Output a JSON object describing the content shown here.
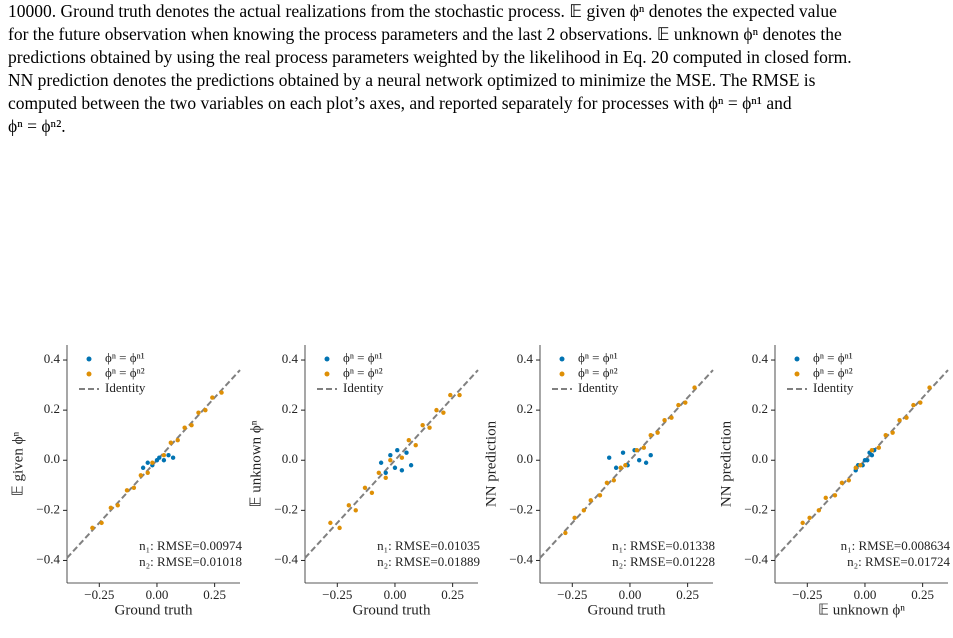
{
  "caption": {
    "lines": [
      "10000. Ground truth denotes the actual realizations from the stochastic process. 𝔼 given ϕⁿ denotes the expected value",
      "for the future observation when knowing the process parameters and the last 2 observations. 𝔼 unknown ϕⁿ denotes the",
      "predictions obtained by using the real process parameters weighted by the likelihood in Eq. 20 computed in closed form.",
      "NN prediction denotes the predictions obtained by a neural network optimized to minimize the MSE. The RMSE is",
      "computed between the two variables on each plot’s axes, and reported separately for processes with ϕⁿ = ϕⁿ¹ and",
      "ϕⁿ = ϕⁿ²."
    ]
  },
  "chart_data": [
    {
      "type": "scatter",
      "xlabel": "Ground truth",
      "ylabel": "𝔼 given ϕⁿ",
      "xlim": [
        -0.39,
        0.36
      ],
      "ylim": [
        -0.49,
        0.46
      ],
      "xticks": [
        {
          "value": -0.25,
          "label": "−0.25"
        },
        {
          "value": 0,
          "label": "0.00"
        },
        0.25
      ],
      "yticks": [
        {
          "value": -0.4,
          "label": "−0.4"
        },
        {
          "value": -0.2,
          "label": "−0.2"
        },
        {
          "value": 0,
          "label": "0.0"
        },
        0.2,
        0.4
      ],
      "legend": "upper left",
      "annotations": [
        "n₁: RMSE=0.00974",
        "n₂: RMSE=0.01018"
      ],
      "series": [
        {
          "name": "ϕⁿ = ϕⁿ¹",
          "color": "#0173b2",
          "x": [
            -0.06,
            -0.04,
            -0.02,
            0.0,
            0.01,
            0.03,
            0.05,
            0.07
          ],
          "values": [
            -0.03,
            -0.01,
            -0.02,
            0.0,
            0.01,
            0.0,
            0.02,
            0.01
          ]
        },
        {
          "name": "ϕⁿ = ϕⁿ²",
          "color": "#de8f05",
          "x": [
            -0.28,
            -0.24,
            -0.2,
            -0.17,
            -0.13,
            -0.1,
            -0.07,
            -0.04,
            -0.02,
            0.03,
            0.06,
            0.09,
            0.12,
            0.15,
            0.18,
            0.21,
            0.24,
            0.28
          ],
          "values": [
            -0.27,
            -0.25,
            -0.19,
            -0.18,
            -0.12,
            -0.11,
            -0.06,
            -0.05,
            -0.01,
            0.02,
            0.07,
            0.08,
            0.13,
            0.14,
            0.19,
            0.2,
            0.25,
            0.27
          ]
        },
        {
          "name": "Identity",
          "color": "#808080",
          "line": true,
          "x": [
            -0.39,
            0.36
          ],
          "values": [
            -0.39,
            0.36
          ]
        }
      ]
    },
    {
      "type": "scatter",
      "xlabel": "Ground truth",
      "ylabel": "𝔼 unknown ϕⁿ",
      "xlim": [
        -0.39,
        0.36
      ],
      "ylim": [
        -0.49,
        0.46
      ],
      "xticks": [
        {
          "value": -0.25,
          "label": "−0.25"
        },
        {
          "value": 0,
          "label": "0.00"
        },
        0.25
      ],
      "yticks": [
        {
          "value": -0.4,
          "label": "−0.4"
        },
        {
          "value": -0.2,
          "label": "−0.2"
        },
        {
          "value": 0,
          "label": "0.0"
        },
        0.2,
        0.4
      ],
      "legend": "upper left",
      "annotations": [
        "n₁: RMSE=0.01035",
        "n₂: RMSE=0.01889"
      ],
      "series": [
        {
          "name": "ϕⁿ = ϕⁿ¹",
          "color": "#0173b2",
          "x": [
            -0.06,
            -0.04,
            -0.02,
            0.0,
            0.01,
            0.03,
            0.05,
            0.07
          ],
          "values": [
            -0.01,
            -0.05,
            0.02,
            -0.03,
            0.04,
            -0.04,
            0.03,
            -0.02
          ]
        },
        {
          "name": "ϕⁿ = ϕⁿ²",
          "color": "#de8f05",
          "x": [
            -0.28,
            -0.24,
            -0.2,
            -0.17,
            -0.13,
            -0.1,
            -0.07,
            -0.04,
            -0.02,
            0.03,
            0.06,
            0.09,
            0.12,
            0.15,
            0.18,
            0.21,
            0.24,
            0.28
          ],
          "values": [
            -0.25,
            -0.27,
            -0.18,
            -0.2,
            -0.11,
            -0.13,
            -0.05,
            -0.07,
            0.0,
            0.01,
            0.08,
            0.06,
            0.14,
            0.13,
            0.2,
            0.19,
            0.26,
            0.26
          ]
        },
        {
          "name": "Identity",
          "color": "#808080",
          "line": true,
          "x": [
            -0.39,
            0.36
          ],
          "values": [
            -0.39,
            0.36
          ]
        }
      ]
    },
    {
      "type": "scatter",
      "xlabel": "Ground truth",
      "ylabel": "NN prediction",
      "xlim": [
        -0.39,
        0.36
      ],
      "ylim": [
        -0.49,
        0.46
      ],
      "xticks": [
        {
          "value": -0.25,
          "label": "−0.25"
        },
        {
          "value": 0,
          "label": "0.00"
        },
        0.25
      ],
      "yticks": [
        {
          "value": -0.4,
          "label": "−0.4"
        },
        {
          "value": -0.2,
          "label": "−0.2"
        },
        {
          "value": 0,
          "label": "0.0"
        },
        0.2,
        0.4
      ],
      "legend": "upper left",
      "annotations": [
        "n₁: RMSE=0.01338",
        "n₂: RMSE=0.01228"
      ],
      "series": [
        {
          "name": "ϕⁿ = ϕⁿ¹",
          "color": "#0173b2",
          "x": [
            -0.09,
            -0.06,
            -0.03,
            -0.01,
            0.02,
            0.04,
            0.07,
            0.09
          ],
          "values": [
            0.01,
            -0.03,
            0.03,
            -0.02,
            0.04,
            0.0,
            -0.01,
            0.02
          ]
        },
        {
          "name": "ϕⁿ = ϕⁿ²",
          "color": "#de8f05",
          "x": [
            -0.28,
            -0.24,
            -0.2,
            -0.17,
            -0.13,
            -0.1,
            -0.07,
            -0.04,
            -0.02,
            0.03,
            0.06,
            0.09,
            0.12,
            0.15,
            0.18,
            0.21,
            0.24,
            0.28
          ],
          "values": [
            -0.29,
            -0.23,
            -0.2,
            -0.16,
            -0.14,
            -0.09,
            -0.08,
            -0.03,
            -0.02,
            0.04,
            0.05,
            0.1,
            0.11,
            0.16,
            0.17,
            0.22,
            0.23,
            0.29
          ]
        },
        {
          "name": "Identity",
          "color": "#808080",
          "line": true,
          "x": [
            -0.39,
            0.36
          ],
          "values": [
            -0.39,
            0.36
          ]
        }
      ]
    },
    {
      "type": "scatter",
      "xlabel": "𝔼 unknown ϕⁿ",
      "ylabel": "NN prediction",
      "xlim": [
        -0.39,
        0.36
      ],
      "ylim": [
        -0.49,
        0.46
      ],
      "xticks": [
        {
          "value": -0.25,
          "label": "−0.25"
        },
        {
          "value": 0,
          "label": "0.00"
        },
        0.25
      ],
      "yticks": [
        {
          "value": -0.4,
          "label": "−0.4"
        },
        {
          "value": -0.2,
          "label": "−0.2"
        },
        {
          "value": 0,
          "label": "0.0"
        },
        0.2,
        0.4
      ],
      "legend": "upper left",
      "annotations": [
        "n₁: RMSE=0.008634",
        "n₂: RMSE=0.01724"
      ],
      "series": [
        {
          "name": "ϕⁿ = ϕⁿ¹",
          "color": "#0173b2",
          "x": [
            -0.04,
            -0.03,
            -0.01,
            0.0,
            0.01,
            0.02,
            0.03,
            0.04
          ],
          "values": [
            -0.04,
            -0.02,
            -0.02,
            0.0,
            0.0,
            0.03,
            0.02,
            0.04
          ]
        },
        {
          "name": "ϕⁿ = ϕⁿ²",
          "color": "#de8f05",
          "x": [
            -0.27,
            -0.24,
            -0.2,
            -0.17,
            -0.13,
            -0.1,
            -0.07,
            -0.04,
            -0.02,
            0.03,
            0.06,
            0.09,
            0.12,
            0.15,
            0.18,
            0.21,
            0.24,
            0.28
          ],
          "values": [
            -0.25,
            -0.23,
            -0.2,
            -0.15,
            -0.14,
            -0.09,
            -0.08,
            -0.03,
            -0.02,
            0.04,
            0.05,
            0.1,
            0.11,
            0.16,
            0.17,
            0.22,
            0.23,
            0.29
          ]
        },
        {
          "name": "Identity",
          "color": "#808080",
          "line": true,
          "x": [
            -0.39,
            0.36
          ],
          "values": [
            -0.39,
            0.36
          ]
        }
      ]
    }
  ]
}
